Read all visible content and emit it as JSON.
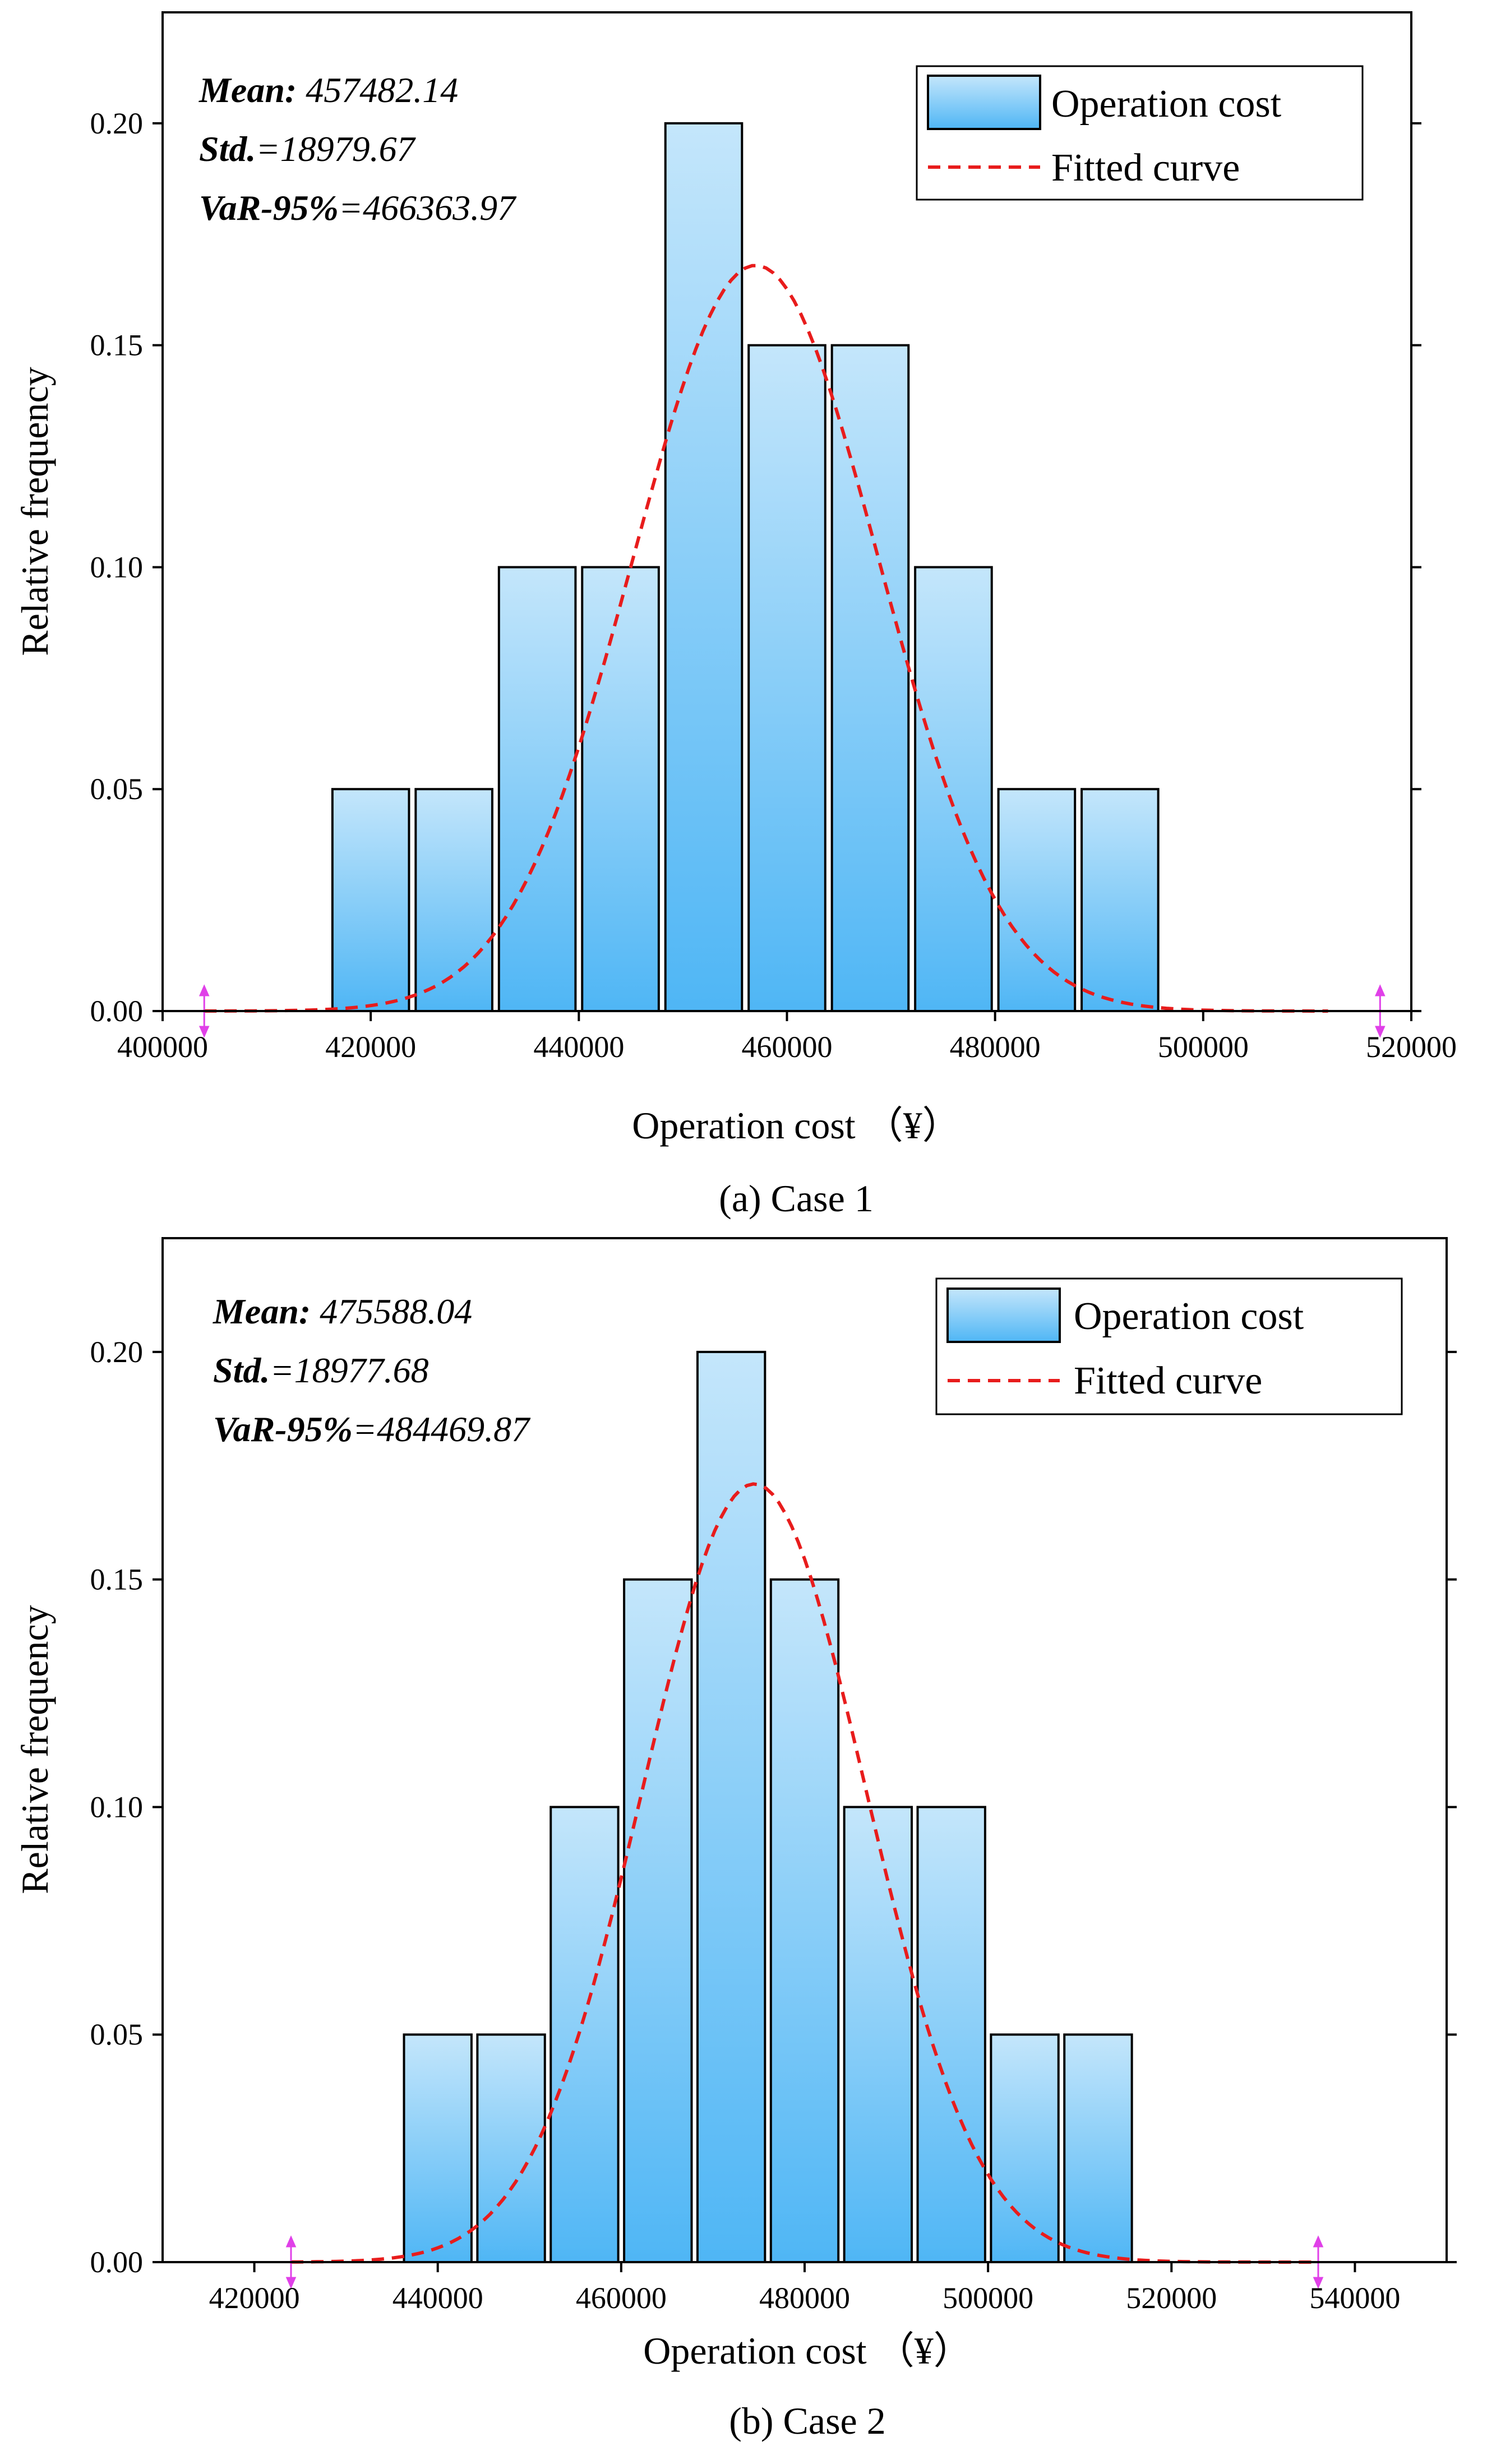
{
  "colors": {
    "bar_top": "#c4e6fb",
    "bar_bottom": "#4fb6f5",
    "curve": "#e81c1c",
    "marker": "#e040e8"
  },
  "chart_data": [
    {
      "type": "bar",
      "panel": "a",
      "caption": "(a) Case 1",
      "xlabel": "Operation cost  （¥）",
      "ylabel": "Relative frequency",
      "xlim": [
        400000,
        520000
      ],
      "ylim": [
        0,
        0.225
      ],
      "xticks": [
        400000,
        420000,
        440000,
        460000,
        480000,
        500000,
        520000
      ],
      "xtick_labels": [
        "400000",
        "420000",
        "440000",
        "460000",
        "480000",
        "500000",
        "520000"
      ],
      "yticks": [
        0,
        0.05,
        0.1,
        0.15,
        0.2
      ],
      "ytick_labels": [
        "0.00",
        "0.05",
        "0.10",
        "0.15",
        "0.20"
      ],
      "bin_width": 8000,
      "bins": [
        416000,
        424000,
        432000,
        440000,
        448000,
        456000,
        464000,
        472000,
        480000,
        488000
      ],
      "values": [
        0.05,
        0.05,
        0.1,
        0.1,
        0.2,
        0.15,
        0.15,
        0.1,
        0.05,
        0.05
      ],
      "fit": {
        "mean": 457000,
        "std": 11800,
        "peak": 0.168,
        "range": [
          404000,
          512000
        ]
      },
      "markers_x": [
        404000,
        517000
      ],
      "stats": [
        {
          "key": "Mean:",
          "value": " 457482.14"
        },
        {
          "key": "Std.",
          "value": "=18979.67"
        },
        {
          "key": "VaR-95%",
          "value": "=466363.97"
        }
      ],
      "legend": {
        "bars": "Operation cost",
        "curve": "Fitted curve",
        "position": "top-right"
      }
    },
    {
      "type": "bar",
      "panel": "b",
      "caption": "(b) Case 2",
      "xlabel": "Operation cost  （¥）",
      "ylabel": "Relative frequency",
      "xlim": [
        410000,
        550000
      ],
      "ylim": [
        0,
        0.225
      ],
      "xticks": [
        420000,
        440000,
        460000,
        480000,
        500000,
        520000,
        540000
      ],
      "xtick_labels": [
        "420000",
        "440000",
        "460000",
        "480000",
        "500000",
        "520000",
        "540000"
      ],
      "yticks": [
        0,
        0.05,
        0.1,
        0.15,
        0.2
      ],
      "ytick_labels": [
        "0.00",
        "0.05",
        "0.10",
        "0.15",
        "0.20"
      ],
      "bin_width": 8000,
      "bins": [
        436000,
        444000,
        452000,
        460000,
        468000,
        476000,
        484000,
        492000,
        500000,
        508000
      ],
      "values": [
        0.05,
        0.05,
        0.1,
        0.15,
        0.2,
        0.15,
        0.1,
        0.1,
        0.05,
        0.05
      ],
      "fit": {
        "mean": 474500,
        "std": 12200,
        "peak": 0.171,
        "range": [
          424000,
          536000
        ]
      },
      "markers_x": [
        424000,
        536000
      ],
      "stats": [
        {
          "key": "Mean:",
          "value": " 475588.04"
        },
        {
          "key": "Std.",
          "value": "=18977.68"
        },
        {
          "key": "VaR-95%",
          "value": "=484469.87"
        }
      ],
      "legend": {
        "bars": "Operation cost",
        "curve": "Fitted curve",
        "position": "top-right"
      }
    }
  ]
}
